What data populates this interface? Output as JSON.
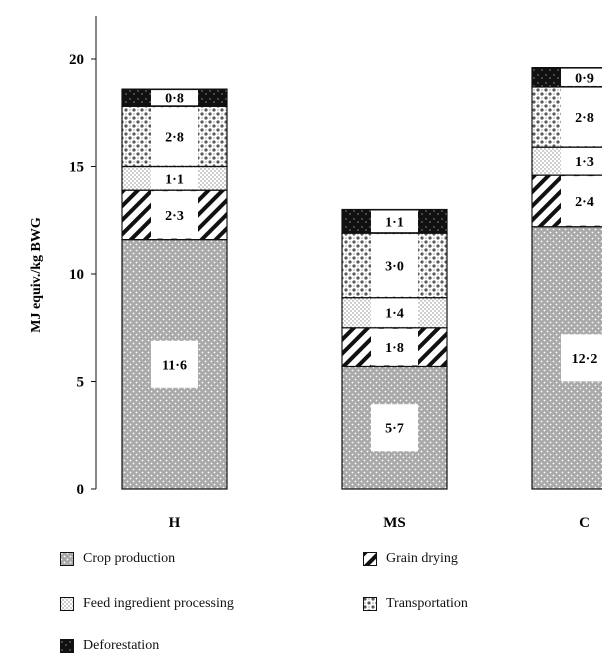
{
  "chart_data": {
    "type": "bar",
    "stacked": true,
    "categories": [
      "H",
      "MS",
      "C"
    ],
    "ylabel": "MJ equiv./kg BWG",
    "ylim": [
      0,
      22
    ],
    "yticks": [
      0,
      5,
      10,
      15,
      20
    ],
    "series": [
      {
        "name": "Crop production",
        "values": [
          11.6,
          5.7,
          12.2
        ],
        "labels": [
          "11·6",
          "5·7",
          "12·2"
        ]
      },
      {
        "name": "Grain drying",
        "values": [
          2.3,
          1.8,
          2.4
        ],
        "labels": [
          "2·3",
          "1·8",
          "2·4"
        ]
      },
      {
        "name": "Feed ingredient processing",
        "values": [
          1.1,
          1.4,
          1.3
        ],
        "labels": [
          "1·1",
          "1·4",
          "1·3"
        ]
      },
      {
        "name": "Transportation",
        "values": [
          2.8,
          3.0,
          2.8
        ],
        "labels": [
          "2·8",
          "3·0",
          "2·8"
        ]
      },
      {
        "name": "Deforestation",
        "values": [
          0.8,
          1.1,
          0.9
        ],
        "labels": [
          "0·8",
          "1·1",
          "0·9"
        ]
      }
    ],
    "legend": [
      "Crop production",
      "Grain drying",
      "Feed ingredient processing",
      "Transportation",
      "Deforestation"
    ],
    "legend_position": "bottom"
  }
}
